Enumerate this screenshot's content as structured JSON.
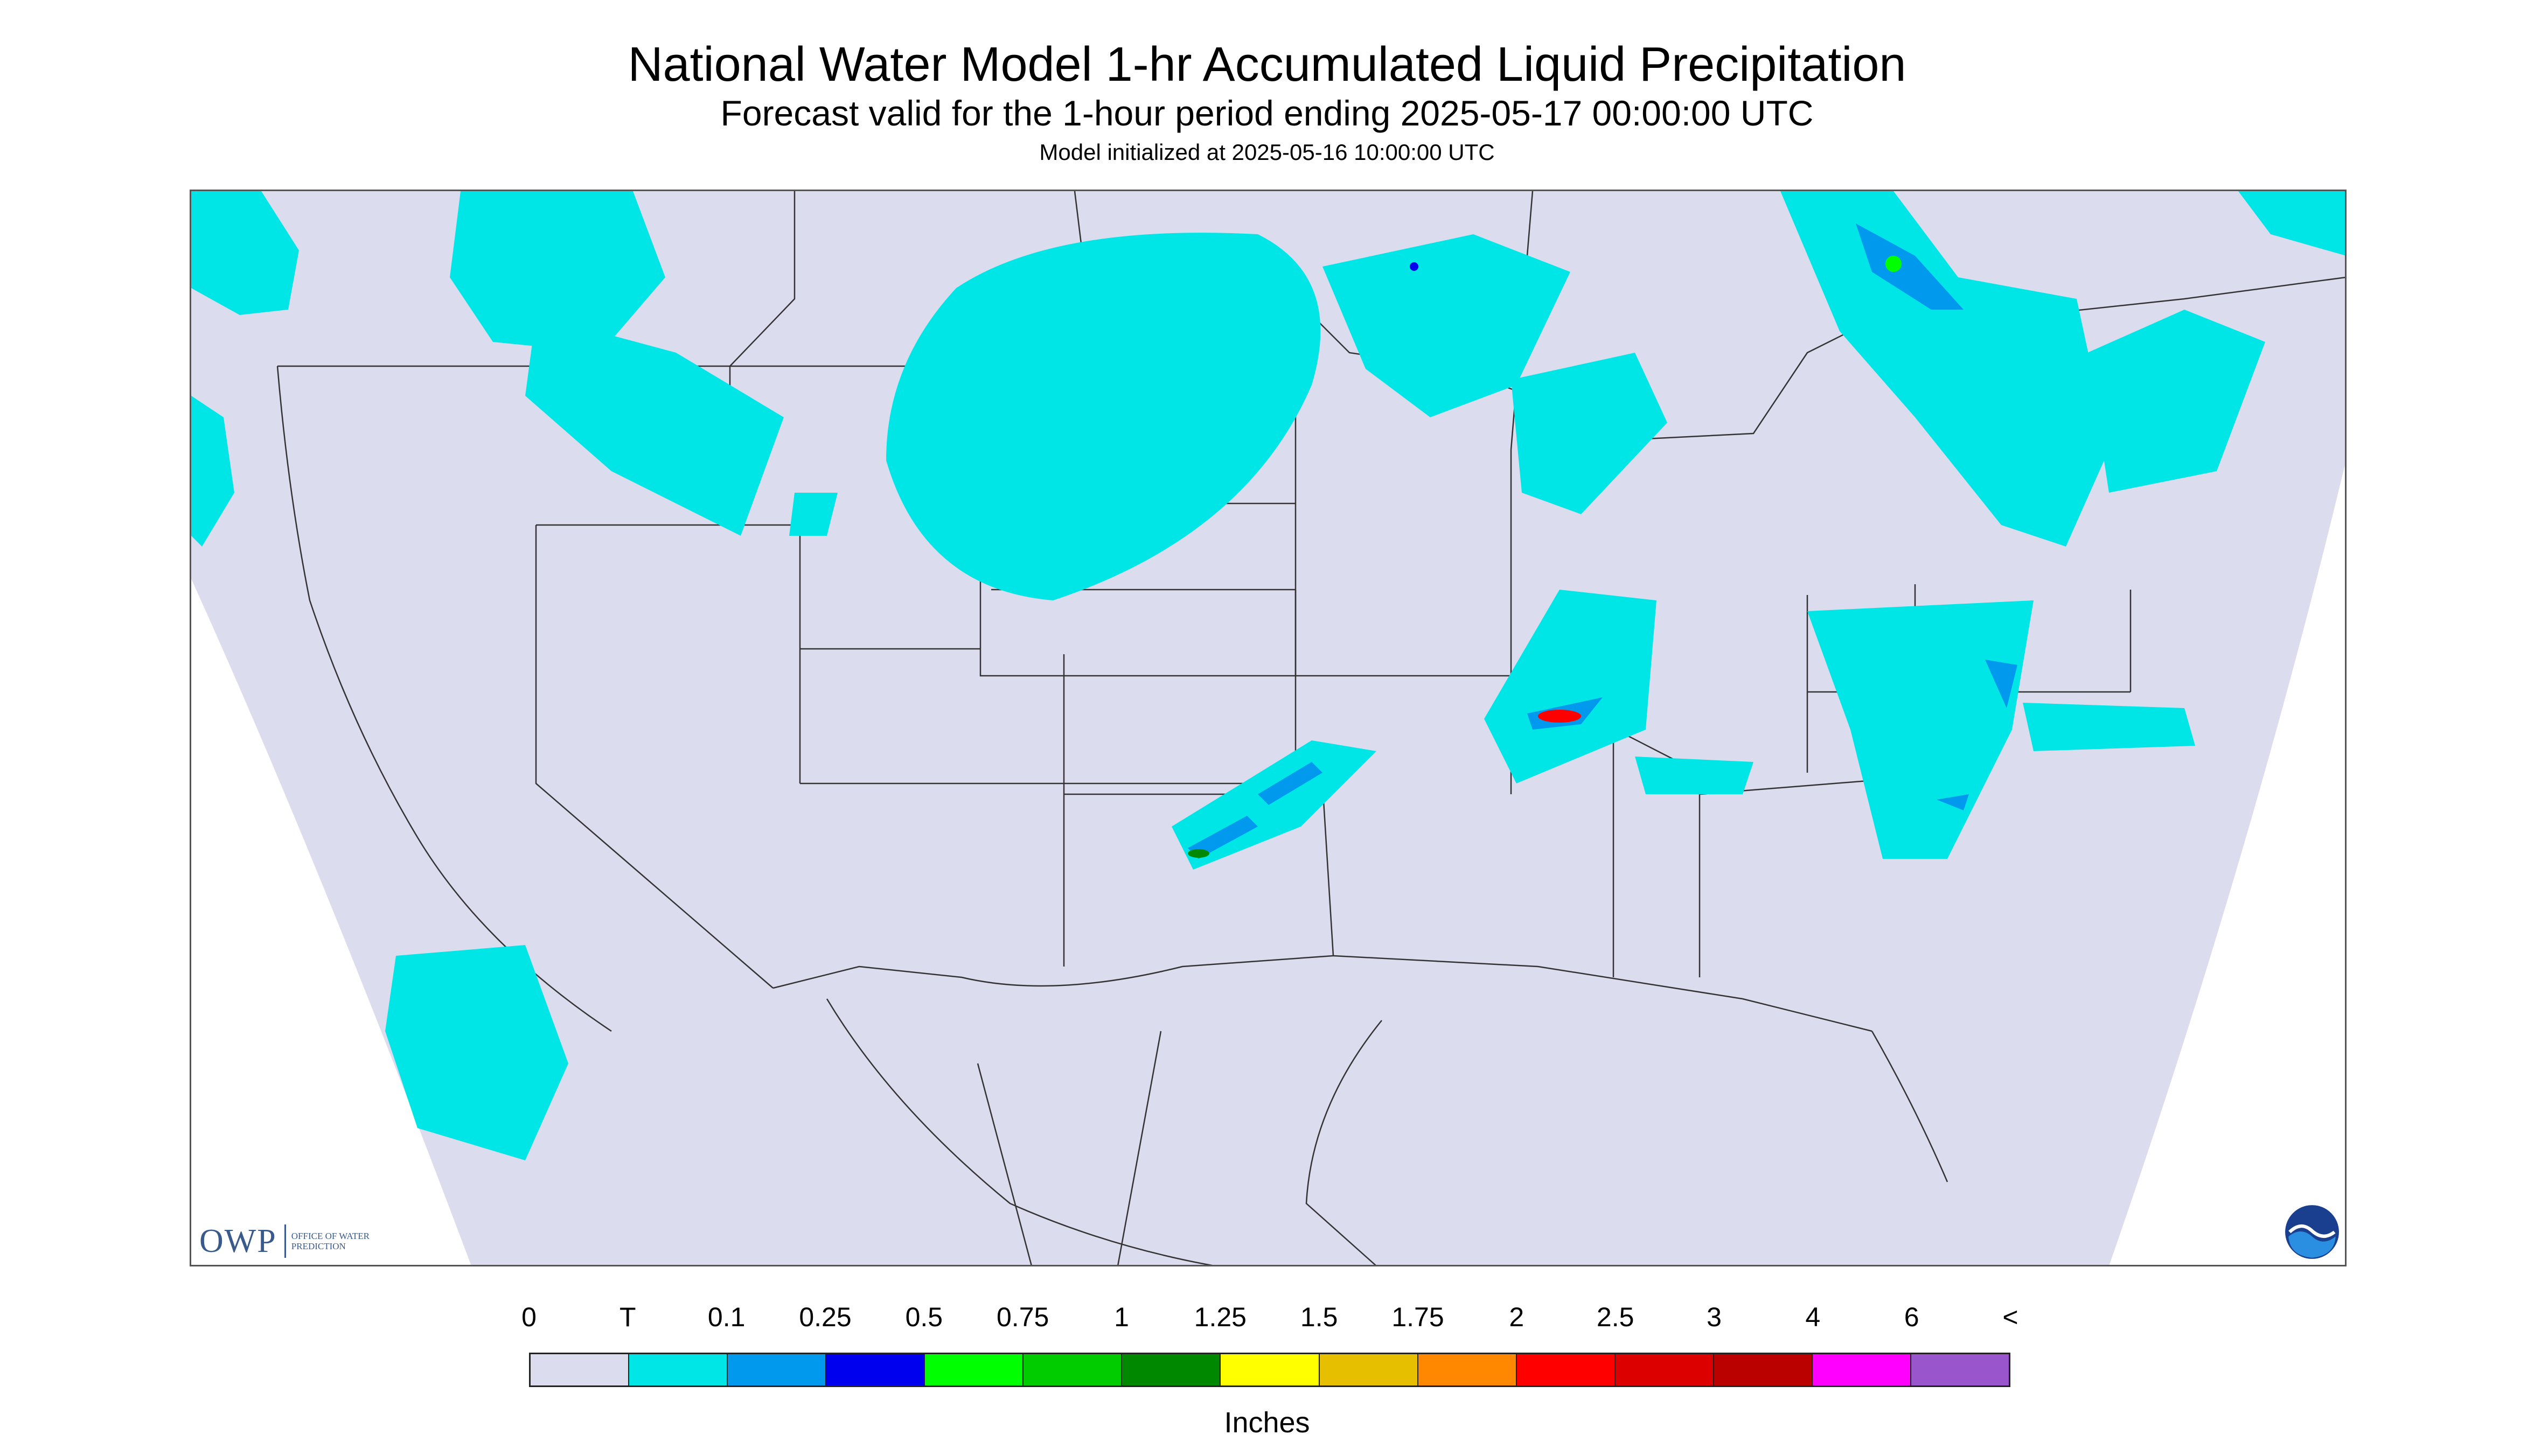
{
  "header": {
    "title": "National Water Model 1-hr Accumulated Liquid Precipitation",
    "subtitle": "Forecast valid for the 1-hour period ending 2025-05-17 00:00:00 UTC",
    "init": "Model initialized at 2025-05-16 10:00:00 UTC"
  },
  "logos": {
    "owp_mark": "OWP",
    "owp_text": "OFFICE OF WATER PREDICTION"
  },
  "legend": {
    "units": "Inches",
    "labels": [
      "0",
      "T",
      "0.1",
      "0.25",
      "0.5",
      "0.75",
      "1",
      "1.25",
      "1.5",
      "1.75",
      "2",
      "2.5",
      "3",
      "4",
      "6",
      "<"
    ],
    "colors": [
      "#dcdcef",
      "#00e6e6",
      "#0099ee",
      "#0000ee",
      "#00ff00",
      "#00cc00",
      "#008800",
      "#ffff00",
      "#e6c000",
      "#ff8800",
      "#ff0000",
      "#dd0000",
      "#bb0000",
      "#ff00ff",
      "#9955cc"
    ]
  },
  "map": {
    "land_color": "#dcdcef",
    "outside_color": "#ffffff",
    "boundary_color": "#333333"
  }
}
